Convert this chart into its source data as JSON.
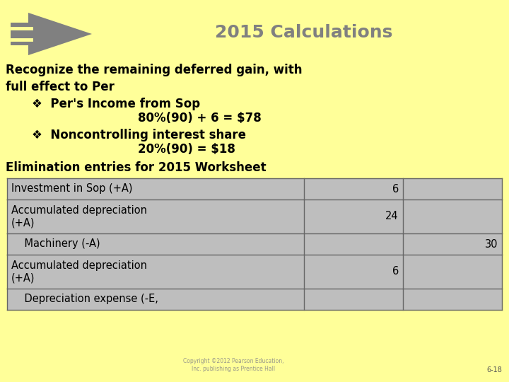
{
  "background_color": "#FFFF99",
  "title": "2015 Calculations",
  "title_color": "#808080",
  "title_fontsize": 18,
  "body_text_1": "Recognize the remaining deferred gain, with\nfull effect to Per",
  "bullet_1_label": "❖  Per's Income from Sop",
  "bullet_1_calc": "80%(90) + 6 = $78",
  "bullet_2_label": "❖  Noncontrolling interest share",
  "bullet_2_calc": "20%(90) = $18",
  "elim_title": "Elimination entries for 2015 Worksheet",
  "table_rows": [
    {
      "label": "Investment in Sop (+A)",
      "col1": "6",
      "col2": ""
    },
    {
      "label": "Accumulated depreciation\n(+A)",
      "col1": "24",
      "col2": ""
    },
    {
      "label": "    Machinery (-A)",
      "col1": "",
      "col2": "30"
    },
    {
      "label": "Accumulated depreciation\n(+A)",
      "col1": "6",
      "col2": ""
    },
    {
      "label": "    Depreciation expense (-E,",
      "col1": "",
      "col2": ""
    }
  ],
  "table_bg": "#BEBEBE",
  "table_border": "#666666",
  "arrow_color": "#808080",
  "copyright_text": "Copyright ©2012 Pearson Education,\nInc. publishing as Prentice Hall",
  "page_num": "6-18",
  "body_fontsize": 12,
  "bullet_fontsize": 12,
  "elim_fontsize": 12,
  "table_fontsize": 10.5
}
